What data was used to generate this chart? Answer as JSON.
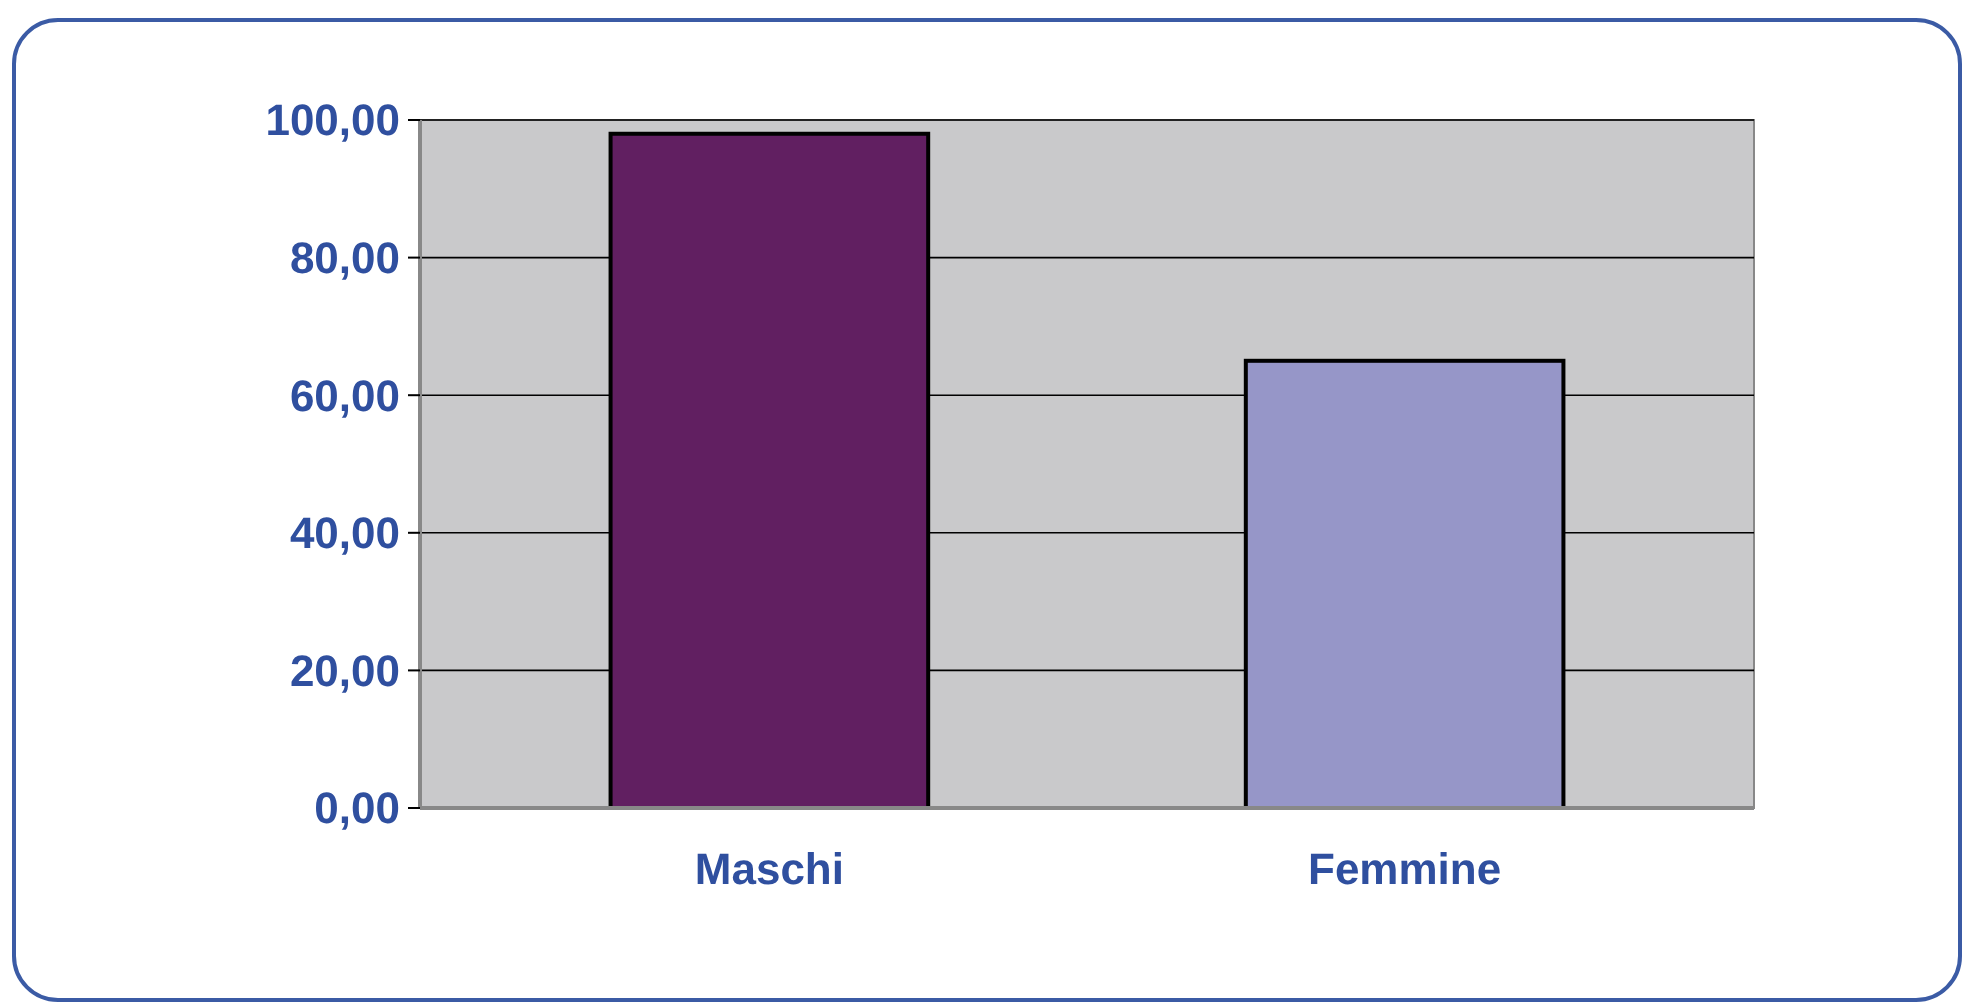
{
  "chart_data": {
    "type": "bar",
    "categories": [
      "Maschi",
      "Femmine"
    ],
    "values": [
      98,
      65
    ],
    "colors": [
      "#611f61",
      "#9696c8"
    ],
    "ylim": [
      0,
      100
    ],
    "yticks": [
      {
        "value": 0,
        "label": "0,00"
      },
      {
        "value": 20,
        "label": "20,00"
      },
      {
        "value": 40,
        "label": "40,00"
      },
      {
        "value": 60,
        "label": "60,00"
      },
      {
        "value": 80,
        "label": "80,00"
      },
      {
        "value": 100,
        "label": "100,00"
      }
    ],
    "grid": "y"
  }
}
